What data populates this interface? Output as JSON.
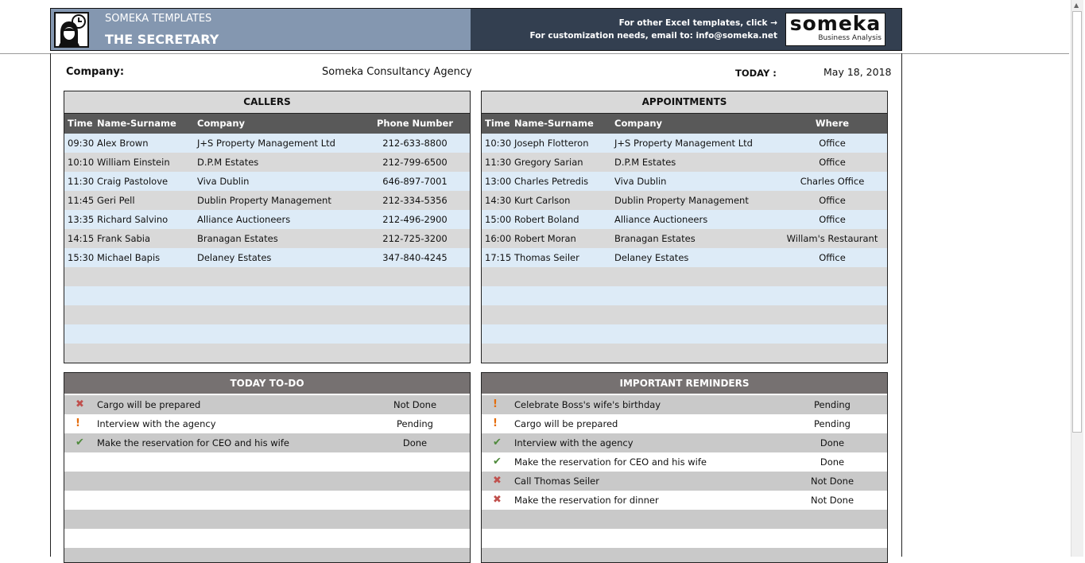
{
  "header": {
    "brand_small": "SOMEKA TEMPLATES",
    "title": "THE SECRETARY",
    "link_line": "For other Excel templates, click →",
    "email_line": "For customization needs, email to: info@someka.net",
    "logo_text": "someka",
    "logo_sub": "Business Analysis"
  },
  "info": {
    "company_label": "Company:",
    "company_value": "Someka Consultancy Agency",
    "today_label": "TODAY :",
    "today_value": "May 18, 2018"
  },
  "callers": {
    "title": "CALLERS",
    "columns": [
      "Time",
      "Name-Surname",
      "Company",
      "Phone Number"
    ],
    "rows": [
      [
        "09:30",
        "Alex Brown",
        "J+S Property Management Ltd",
        "212-633-8800"
      ],
      [
        "10:10",
        "William Einstein",
        "D.P.M Estates",
        "212-799-6500"
      ],
      [
        "11:30",
        "Craig Pastolove",
        "Viva Dublin",
        "646-897-7001"
      ],
      [
        "11:45",
        "Geri Pell",
        "Dublin Property Management",
        "212-334-5356"
      ],
      [
        "13:35",
        "Richard Salvino",
        "Alliance Auctioneers",
        "212-496-2900"
      ],
      [
        "14:15",
        "Frank Sabia",
        "Branagan Estates",
        "212-725-3200"
      ],
      [
        "15:30",
        "Michael Bapis",
        "Delaney Estates",
        "347-840-4245"
      ]
    ]
  },
  "appointments": {
    "title": "APPOINTMENTS",
    "columns": [
      "Time",
      "Name-Surname",
      "Company",
      "Where"
    ],
    "rows": [
      [
        "10:30",
        "Joseph Flotteron",
        "J+S Property Management Ltd",
        "Office"
      ],
      [
        "11:30",
        "Gregory Sarian",
        "D.P.M Estates",
        "Office"
      ],
      [
        "13:00",
        "Charles Petredis",
        "Viva Dublin",
        "Charles Office"
      ],
      [
        "14:30",
        "Kurt Carlson",
        "Dublin Property Management",
        "Office"
      ],
      [
        "15:00",
        "Robert Boland",
        "Alliance Auctioneers",
        "Office"
      ],
      [
        "16:00",
        "Robert Moran",
        "Branagan Estates",
        "Willam's Restaurant"
      ],
      [
        "17:15",
        "Thomas Seiler",
        "Delaney Estates",
        "Office"
      ]
    ]
  },
  "todo": {
    "title": "TODAY TO-DO",
    "rows": [
      {
        "icon": "x-icon",
        "task": "Cargo will be prepared",
        "status": "Not Done"
      },
      {
        "icon": "exclamation-icon",
        "task": "Interview with the agency",
        "status": "Pending"
      },
      {
        "icon": "check-icon",
        "task": "Make the reservation for CEO and his wife",
        "status": "Done"
      }
    ]
  },
  "reminders": {
    "title": "IMPORTANT REMINDERS",
    "rows": [
      {
        "icon": "exclamation-icon",
        "task": "Celebrate Boss's wife's birthday",
        "status": "Pending"
      },
      {
        "icon": "exclamation-icon",
        "task": "Cargo will be prepared",
        "status": "Pending"
      },
      {
        "icon": "check-icon",
        "task": "Interview with the agency",
        "status": "Done"
      },
      {
        "icon": "check-icon",
        "task": "Make the reservation for CEO and his wife",
        "status": "Done"
      },
      {
        "icon": "x-icon",
        "task": "Call Thomas Seiler",
        "status": "Not Done"
      },
      {
        "icon": "x-icon",
        "task": "Make the reservation for dinner",
        "status": "Not Done"
      }
    ]
  },
  "colors": {
    "header_left": "#8497b0",
    "header_right": "#333f50",
    "row_blue": "#ddebf7",
    "row_gray": "#d9d9d9",
    "col_header": "#595959",
    "panel_header_dark": "#767171",
    "x": "#c0504d",
    "exclamation": "#e46c0a",
    "check": "#4f8a3c"
  }
}
